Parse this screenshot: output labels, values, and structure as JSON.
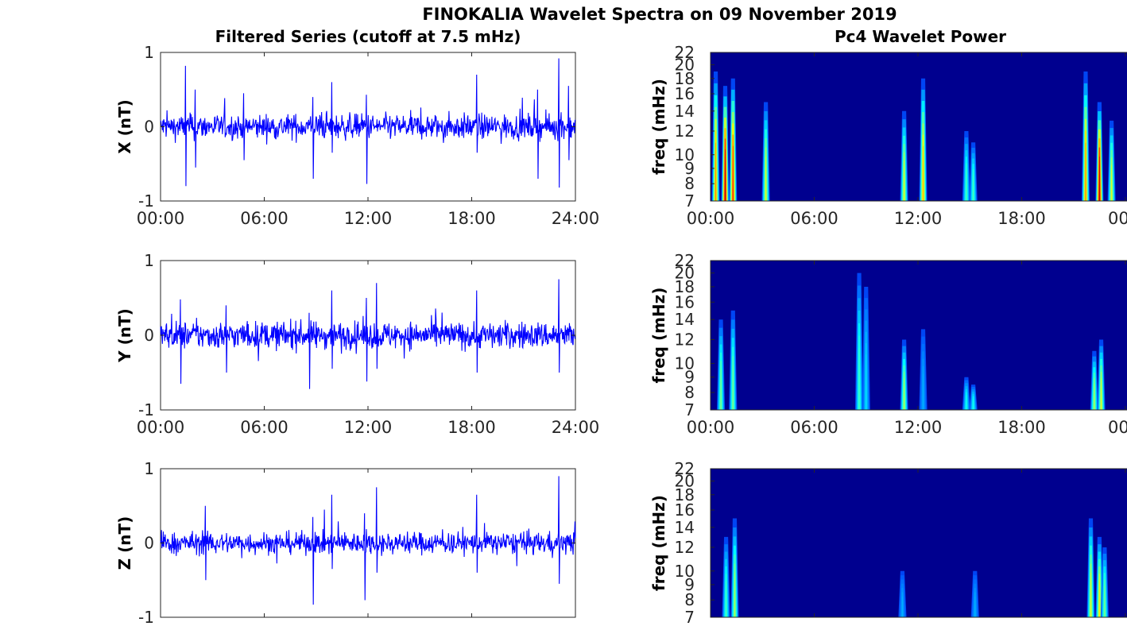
{
  "figure": {
    "title": "FINOKALIA Wavelet Spectra on 09 November 2019",
    "left_title": "Filtered Series (cutoff at 7.5 mHz)",
    "right_title": "Pc4 Wavelet Power"
  },
  "chart_data": [
    {
      "type": "line",
      "title": "Filtered Series (cutoff at 7.5 mHz)",
      "ylabel": "X (nT)",
      "xlim": [
        "00:00",
        "24:00"
      ],
      "ylim": [
        -1,
        1
      ],
      "xticks": [
        "00:00",
        "06:00",
        "12:00",
        "18:00",
        "24:00"
      ],
      "yticks": [
        "-1",
        "0",
        "1"
      ],
      "line_color": "#0000ff",
      "series": [
        {
          "noise_band": 0.15,
          "peaks": [
            {
              "t": 1.43,
              "max": 0.82,
              "min": -0.8
            },
            {
              "t": 2.0,
              "max": 0.5,
              "min": -0.55
            },
            {
              "t": 4.8,
              "max": 0.45,
              "min": -0.45
            },
            {
              "t": 8.8,
              "max": 0.4,
              "min": -0.7
            },
            {
              "t": 9.9,
              "max": 0.6,
              "min": -0.35
            },
            {
              "t": 11.9,
              "max": 0.43,
              "min": -0.77
            },
            {
              "t": 18.3,
              "max": 0.7,
              "min": -0.35
            },
            {
              "t": 21.8,
              "max": 0.5,
              "min": -0.7
            },
            {
              "t": 23.03,
              "max": 0.92,
              "min": -0.82
            },
            {
              "t": 23.6,
              "max": 0.55,
              "min": -0.45
            }
          ]
        }
      ]
    },
    {
      "type": "line",
      "ylabel": "Y (nT)",
      "xlim": [
        "00:00",
        "24:00"
      ],
      "ylim": [
        -1,
        1
      ],
      "xticks": [
        "00:00",
        "06:00",
        "12:00",
        "18:00",
        "24:00"
      ],
      "yticks": [
        "-1",
        "0",
        "1"
      ],
      "line_color": "#0000ff",
      "series": [
        {
          "noise_band": 0.16,
          "peaks": [
            {
              "t": 1.15,
              "max": 0.48,
              "min": -0.65
            },
            {
              "t": 3.8,
              "max": 0.4,
              "min": -0.5
            },
            {
              "t": 8.6,
              "max": 0.3,
              "min": -0.72
            },
            {
              "t": 9.9,
              "max": 0.6,
              "min": -0.45
            },
            {
              "t": 11.9,
              "max": 0.5,
              "min": -0.62
            },
            {
              "t": 12.5,
              "max": 0.7,
              "min": -0.45
            },
            {
              "t": 18.3,
              "max": 0.6,
              "min": -0.5
            },
            {
              "t": 23.03,
              "max": 0.75,
              "min": -0.5
            }
          ]
        }
      ]
    },
    {
      "type": "line",
      "ylabel": "Z (nT)",
      "xlim": [
        "00:00",
        "24:00"
      ],
      "ylim": [
        -1,
        1
      ],
      "yticks": [
        "-1",
        "0",
        "1"
      ],
      "line_color": "#0000ff",
      "series": [
        {
          "noise_band": 0.13,
          "peaks": [
            {
              "t": 2.6,
              "max": 0.5,
              "min": -0.5
            },
            {
              "t": 8.8,
              "max": 0.35,
              "min": -0.83
            },
            {
              "t": 9.9,
              "max": 0.65,
              "min": -0.35
            },
            {
              "t": 11.8,
              "max": 0.4,
              "min": -0.77
            },
            {
              "t": 12.5,
              "max": 0.75,
              "min": -0.4
            },
            {
              "t": 18.3,
              "max": 0.65,
              "min": -0.4
            },
            {
              "t": 23.03,
              "max": 0.9,
              "min": -0.55
            }
          ]
        }
      ]
    },
    {
      "type": "heatmap",
      "title": "Pc4 Wavelet Power",
      "ylabel": "freq (mHz)",
      "xticks": [
        "00:00",
        "06:00",
        "12:00",
        "18:00",
        "00"
      ],
      "yticks": [
        "7",
        "8",
        "9",
        "10",
        "12",
        "14",
        "16",
        "18",
        "20",
        "22"
      ],
      "ylim": [
        7,
        22
      ],
      "colormap": "jet",
      "background": "#00008f",
      "bursts": [
        {
          "t": 0.3,
          "f_top": 19,
          "peak": 0.75
        },
        {
          "t": 0.85,
          "f_top": 17,
          "peak": 0.95
        },
        {
          "t": 1.3,
          "f_top": 18,
          "peak": 0.85
        },
        {
          "t": 3.2,
          "f_top": 15,
          "peak": 0.6
        },
        {
          "t": 11.2,
          "f_top": 14,
          "peak": 0.6
        },
        {
          "t": 12.3,
          "f_top": 18,
          "peak": 0.7
        },
        {
          "t": 14.8,
          "f_top": 12,
          "peak": 0.45
        },
        {
          "t": 15.2,
          "f_top": 11,
          "peak": 0.45
        },
        {
          "t": 21.7,
          "f_top": 19,
          "peak": 0.75
        },
        {
          "t": 22.5,
          "f_top": 15,
          "peak": 0.95
        },
        {
          "t": 23.2,
          "f_top": 13,
          "peak": 0.6
        }
      ]
    },
    {
      "type": "heatmap",
      "ylabel": "freq (mHz)",
      "xticks": [
        "00:00",
        "06:00",
        "12:00",
        "18:00",
        "00"
      ],
      "yticks": [
        "7",
        "8",
        "9",
        "10",
        "12",
        "14",
        "16",
        "18",
        "20",
        "22"
      ],
      "ylim": [
        7,
        22
      ],
      "colormap": "jet",
      "background": "#00008f",
      "bursts": [
        {
          "t": 0.6,
          "f_top": 14,
          "peak": 0.5
        },
        {
          "t": 1.3,
          "f_top": 15,
          "peak": 0.5
        },
        {
          "t": 8.6,
          "f_top": 20,
          "peak": 0.45
        },
        {
          "t": 9.0,
          "f_top": 18,
          "peak": 0.35
        },
        {
          "t": 11.2,
          "f_top": 12,
          "peak": 0.55
        },
        {
          "t": 12.3,
          "f_top": 13,
          "peak": 0.3
        },
        {
          "t": 14.8,
          "f_top": 9,
          "peak": 0.4
        },
        {
          "t": 15.2,
          "f_top": 8.5,
          "peak": 0.4
        },
        {
          "t": 22.2,
          "f_top": 11,
          "peak": 0.55
        },
        {
          "t": 22.6,
          "f_top": 12,
          "peak": 0.6
        }
      ]
    },
    {
      "type": "heatmap",
      "ylabel": "freq (mHz)",
      "yticks": [
        "7",
        "8",
        "9",
        "10",
        "12",
        "14",
        "16",
        "18",
        "20",
        "22"
      ],
      "ylim": [
        7,
        22
      ],
      "colormap": "jet",
      "background": "#00008f",
      "bursts": [
        {
          "t": 0.9,
          "f_top": 13,
          "peak": 0.45
        },
        {
          "t": 1.4,
          "f_top": 15,
          "peak": 0.55
        },
        {
          "t": 11.1,
          "f_top": 10,
          "peak": 0.3
        },
        {
          "t": 15.3,
          "f_top": 10,
          "peak": 0.3
        },
        {
          "t": 22.0,
          "f_top": 15,
          "peak": 0.6
        },
        {
          "t": 22.5,
          "f_top": 13,
          "peak": 0.65
        },
        {
          "t": 22.8,
          "f_top": 12,
          "peak": 0.5
        }
      ]
    }
  ]
}
